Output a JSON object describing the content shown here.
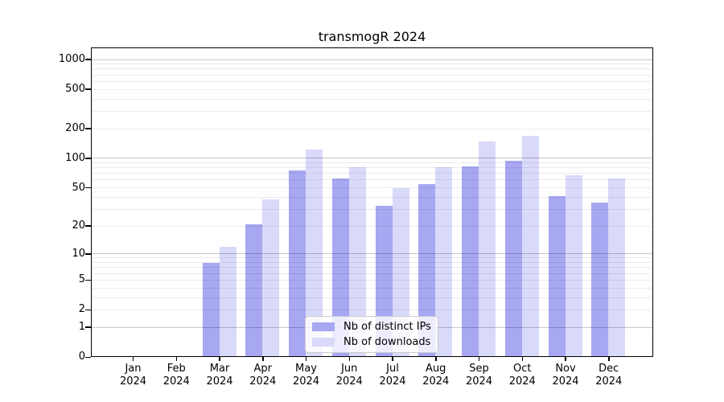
{
  "chart_data": {
    "type": "bar",
    "title": "transmogR 2024",
    "categories": [
      "Jan",
      "Feb",
      "Mar",
      "Apr",
      "May",
      "Jun",
      "Jul",
      "Aug",
      "Sep",
      "Oct",
      "Nov",
      "Dec"
    ],
    "x_tick_second_line": "2024",
    "series": [
      {
        "name": "Nb of distinct IPs",
        "color": "#a7a7f2",
        "values": [
          0,
          0,
          8,
          21,
          75,
          62,
          33,
          55,
          83,
          95,
          41,
          35
        ]
      },
      {
        "name": "Nb of downloads",
        "color": "#d9d9fa",
        "values": [
          0,
          0,
          12,
          38,
          124,
          82,
          50,
          82,
          150,
          170,
          67,
          63
        ]
      }
    ],
    "y_ticks": [
      0,
      1,
      2,
      5,
      10,
      20,
      50,
      100,
      200,
      500,
      1000
    ],
    "y_scale": "log1p",
    "ylim": [
      0,
      1300
    ],
    "grid": true,
    "legend_position": "lower center"
  }
}
